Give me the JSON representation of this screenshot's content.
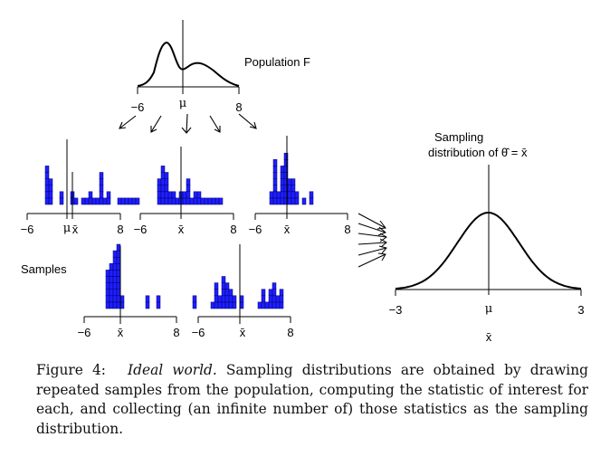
{
  "figure": {
    "population": {
      "label": "Population F",
      "tick_left": "−6",
      "tick_right": "8",
      "mu_label": "μ"
    },
    "samples_label": "Samples",
    "sample_axes": [
      {
        "tick_left": "−6",
        "tick_right": "8",
        "mean_label": "x̄",
        "mu_label": "μ"
      },
      {
        "tick_left": "−6",
        "tick_right": "8",
        "mean_label": "x̄"
      },
      {
        "tick_left": "−6",
        "tick_right": "8",
        "mean_label": "x̄"
      },
      {
        "tick_left": "−6",
        "tick_right": "8",
        "mean_label": "x̄"
      },
      {
        "tick_left": "−6",
        "tick_right": "8",
        "mean_label": "x̄"
      }
    ],
    "sampling_distribution": {
      "title_line1": "Sampling",
      "title_line2": "distribution of θ̂ = x̄",
      "tick_left": "−3",
      "tick_right": "3",
      "mu_label": "μ",
      "xlabel": "x̄"
    },
    "bar_color": "#1f1fff",
    "bar_edge_color": "#00006e"
  },
  "caption": {
    "label": "Figure 4:",
    "title": "Ideal world.",
    "text": "Sampling distributions are obtained by drawing repeated samples from the population, computing the statistic of interest for each, and collecting (an infinite number of) those statistics as the sampling distribution."
  }
}
